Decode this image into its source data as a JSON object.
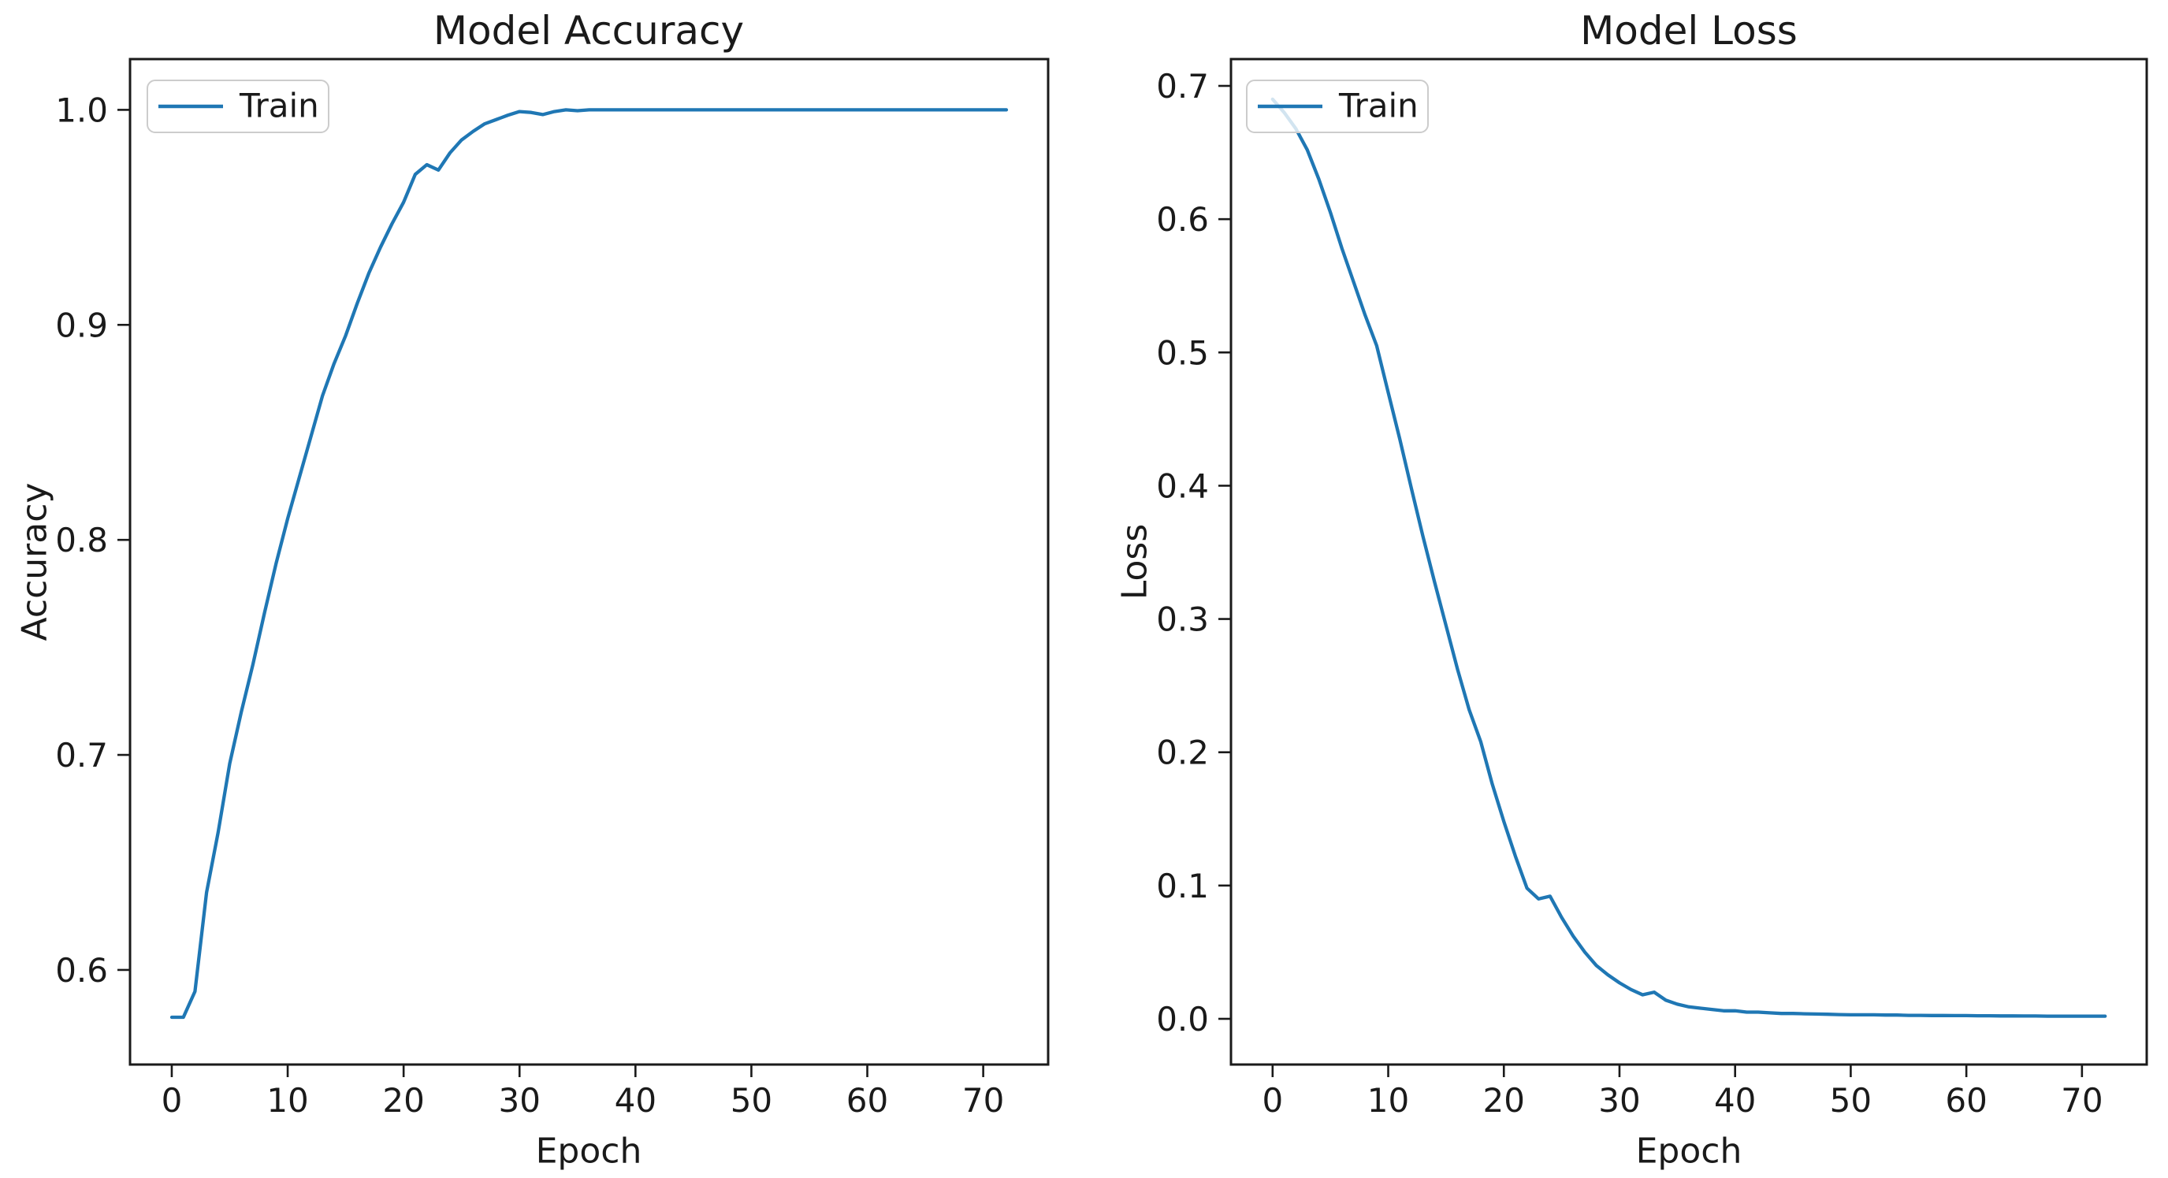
{
  "figure": {
    "background": "#ffffff",
    "accent_blue": "#1f77b4",
    "axis_color": "#1a1a1a",
    "legend_border_color": "#cccccc"
  },
  "chart_data": [
    {
      "type": "line",
      "title": "Model Accuracy",
      "xlabel": "Epoch",
      "ylabel": "Accuracy",
      "grid": false,
      "legend": {
        "position": "upper-left",
        "entries": [
          "Train"
        ]
      },
      "x_ticks": [
        0,
        10,
        20,
        30,
        40,
        50,
        60,
        70
      ],
      "x_tick_labels": [
        "0",
        "10",
        "20",
        "30",
        "40",
        "50",
        "60",
        "70"
      ],
      "y_ticks": [
        0.6,
        0.7,
        0.8,
        0.9,
        1.0
      ],
      "y_tick_labels": [
        "0.6",
        "0.7",
        "0.8",
        "0.9",
        "1.0"
      ],
      "xlim": [
        -3.6,
        75.6
      ],
      "ylim": [
        0.556,
        1.0236
      ],
      "series": [
        {
          "name": "Train",
          "color": "#1f77b4",
          "x_start": 0,
          "x_step": 1,
          "values": [
            0.578,
            0.578,
            0.59,
            0.636,
            0.664,
            0.696,
            0.72,
            0.742,
            0.766,
            0.789,
            0.81,
            0.829,
            0.848,
            0.867,
            0.882,
            0.895,
            0.91,
            0.924,
            0.936,
            0.947,
            0.957,
            0.97,
            0.9745,
            0.972,
            0.98,
            0.986,
            0.99,
            0.9935,
            0.9955,
            0.9975,
            0.9992,
            0.9988,
            0.9978,
            0.9992,
            1.0,
            0.9996,
            1.0,
            1.0,
            1.0,
            1.0,
            1.0,
            1.0,
            1.0,
            1.0,
            1.0,
            1.0,
            1.0,
            1.0,
            1.0,
            1.0,
            1.0,
            1.0,
            1.0,
            1.0,
            1.0,
            1.0,
            1.0,
            1.0,
            1.0,
            1.0,
            1.0,
            1.0,
            1.0,
            1.0,
            1.0,
            1.0,
            1.0,
            1.0,
            1.0,
            1.0,
            1.0,
            1.0,
            1.0
          ]
        }
      ]
    },
    {
      "type": "line",
      "title": "Model Loss",
      "xlabel": "Epoch",
      "ylabel": "Loss",
      "grid": false,
      "legend": {
        "position": "upper-left",
        "entries": [
          "Train"
        ]
      },
      "x_ticks": [
        0,
        10,
        20,
        30,
        40,
        50,
        60,
        70
      ],
      "x_tick_labels": [
        "0",
        "10",
        "20",
        "30",
        "40",
        "50",
        "60",
        "70"
      ],
      "y_ticks": [
        0.0,
        0.1,
        0.2,
        0.3,
        0.4,
        0.5,
        0.6,
        0.7
      ],
      "y_tick_labels": [
        "0.0",
        "0.1",
        "0.2",
        "0.3",
        "0.4",
        "0.5",
        "0.6",
        "0.7"
      ],
      "xlim": [
        -3.6,
        75.6
      ],
      "ylim": [
        -0.0343,
        0.7201
      ],
      "series": [
        {
          "name": "Train",
          "color": "#1f77b4",
          "x_start": 0,
          "x_step": 1,
          "values": [
            0.69,
            0.68,
            0.668,
            0.652,
            0.63,
            0.605,
            0.578,
            0.553,
            0.528,
            0.505,
            0.47,
            0.435,
            0.398,
            0.362,
            0.328,
            0.295,
            0.262,
            0.232,
            0.208,
            0.176,
            0.148,
            0.122,
            0.098,
            0.09,
            0.092,
            0.076,
            0.062,
            0.05,
            0.04,
            0.033,
            0.027,
            0.022,
            0.018,
            0.02,
            0.014,
            0.011,
            0.009,
            0.008,
            0.007,
            0.006,
            0.006,
            0.005,
            0.005,
            0.0045,
            0.004,
            0.004,
            0.0038,
            0.0036,
            0.0034,
            0.0032,
            0.003,
            0.003,
            0.003,
            0.0028,
            0.0028,
            0.0026,
            0.0026,
            0.0025,
            0.0025,
            0.0024,
            0.0024,
            0.0023,
            0.0023,
            0.0022,
            0.0022,
            0.0021,
            0.0021,
            0.002,
            0.002,
            0.002,
            0.002,
            0.002,
            0.002
          ]
        }
      ]
    }
  ]
}
